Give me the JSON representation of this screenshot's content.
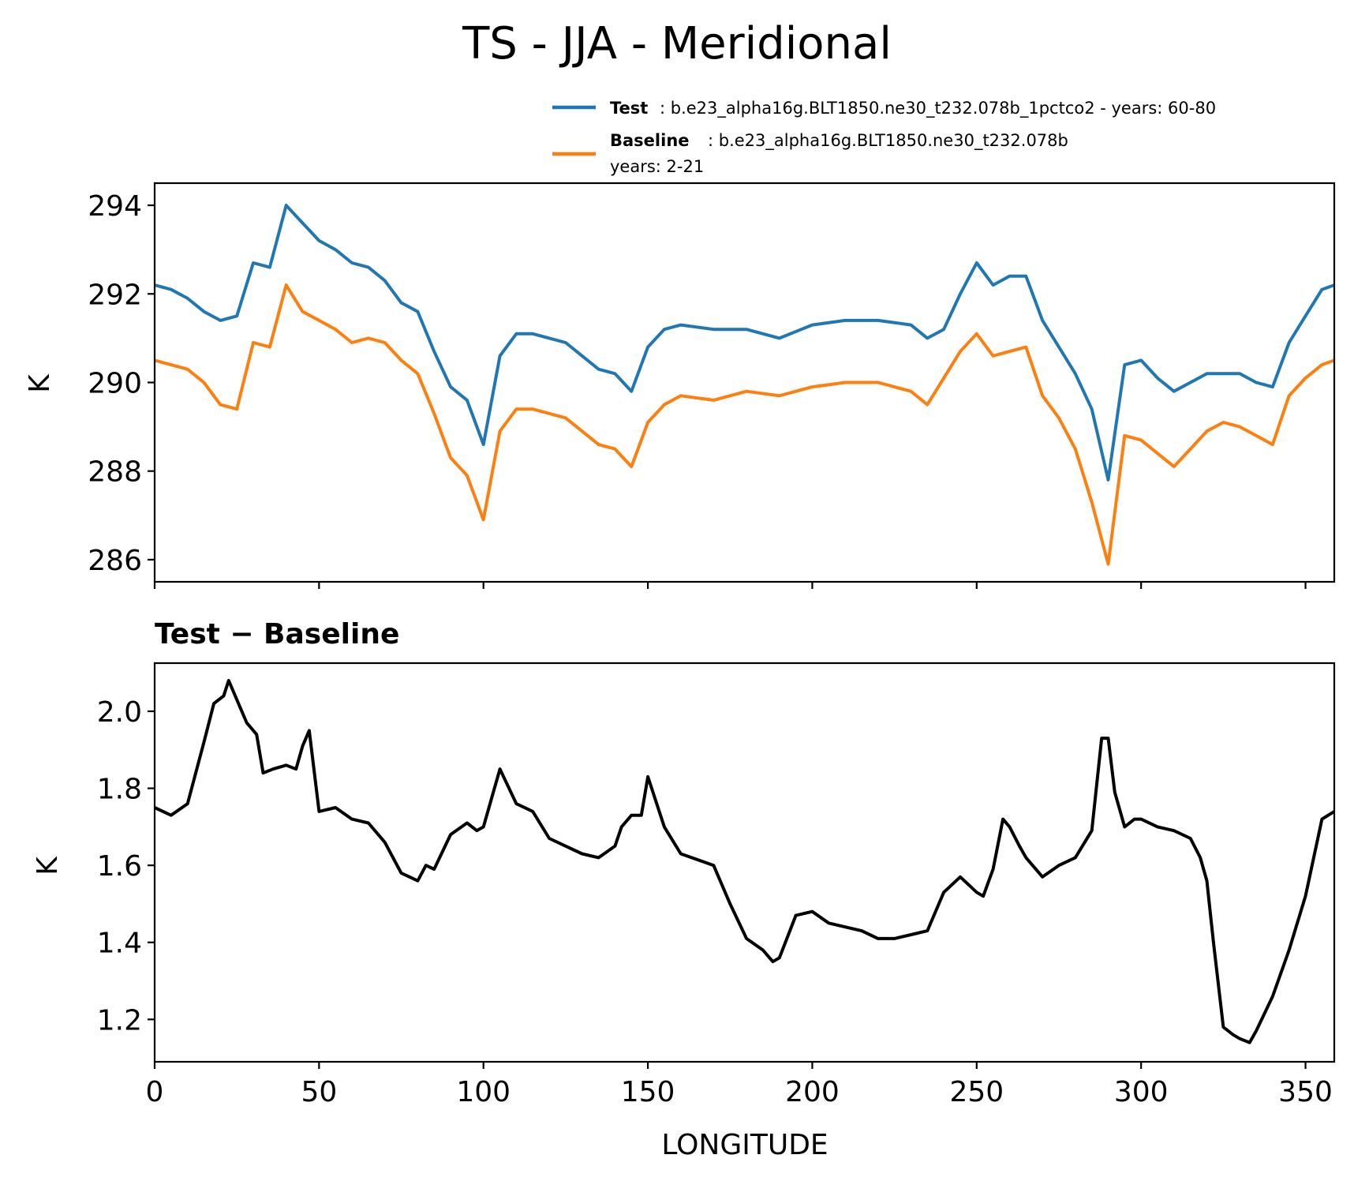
{
  "chart_data": {
    "type": "line",
    "title": "TS - JJA - Meridional",
    "xlabel": "LONGITUDE",
    "colors": {
      "test": "#1f77b4",
      "baseline": "#ff7f0e",
      "diff": "#000000"
    },
    "legend": {
      "placement": "upper-right",
      "entries": [
        {
          "name": "Test",
          "desc": ": b.e23_alpha16g.BLT1850.ne30_t232.078b_1pctco2 - years: 60-80",
          "desc2": ""
        },
        {
          "name": "Baseline",
          "desc": ": b.e23_alpha16g.BLT1850.ne30_t232.078b",
          "desc2": "years: 2-21"
        }
      ]
    },
    "top": {
      "ylabel": "K",
      "xlim": [
        0,
        358.75
      ],
      "ylim": [
        285.5,
        294.5
      ],
      "yticks": [
        "286",
        "288",
        "290",
        "292",
        "294"
      ],
      "ytick_values": [
        286,
        288,
        290,
        292,
        294
      ],
      "xtick_values": [
        0,
        50,
        100,
        150,
        200,
        250,
        300,
        350
      ],
      "x": [
        0,
        5,
        10,
        15,
        20,
        25,
        30,
        35,
        40,
        45,
        50,
        55,
        60,
        65,
        70,
        75,
        80,
        85,
        90,
        95,
        100,
        105,
        110,
        115,
        120,
        125,
        130,
        135,
        140,
        145,
        150,
        155,
        160,
        170,
        180,
        190,
        200,
        210,
        220,
        230,
        235,
        240,
        245,
        250,
        255,
        260,
        265,
        270,
        275,
        280,
        285,
        290,
        295,
        300,
        305,
        310,
        315,
        320,
        325,
        330,
        335,
        340,
        345,
        350,
        355,
        358.75
      ],
      "series": [
        {
          "name": "Test",
          "values": [
            292.2,
            292.1,
            291.9,
            291.6,
            291.4,
            291.5,
            292.7,
            292.6,
            294.0,
            293.6,
            293.2,
            293.0,
            292.7,
            292.6,
            292.3,
            291.8,
            291.6,
            290.7,
            289.9,
            289.6,
            288.6,
            290.6,
            291.1,
            291.1,
            291.0,
            290.9,
            290.6,
            290.3,
            290.2,
            289.8,
            290.8,
            291.2,
            291.3,
            291.2,
            291.2,
            291.0,
            291.3,
            291.4,
            291.4,
            291.3,
            291.0,
            291.2,
            292.0,
            292.7,
            292.2,
            292.4,
            292.4,
            291.4,
            290.8,
            290.2,
            289.4,
            287.8,
            290.4,
            290.5,
            290.1,
            289.8,
            290.0,
            290.2,
            290.2,
            290.2,
            290.0,
            289.9,
            290.9,
            291.5,
            292.1,
            292.2
          ]
        },
        {
          "name": "Baseline",
          "values": [
            290.5,
            290.4,
            290.3,
            290.0,
            289.5,
            289.4,
            290.9,
            290.8,
            292.2,
            291.6,
            291.4,
            291.2,
            290.9,
            291.0,
            290.9,
            290.5,
            290.2,
            289.3,
            288.3,
            287.9,
            286.9,
            288.9,
            289.4,
            289.4,
            289.3,
            289.2,
            288.9,
            288.6,
            288.5,
            288.1,
            289.1,
            289.5,
            289.7,
            289.6,
            289.8,
            289.7,
            289.9,
            290.0,
            290.0,
            289.8,
            289.5,
            290.1,
            290.7,
            291.1,
            290.6,
            290.7,
            290.8,
            289.7,
            289.2,
            288.5,
            287.3,
            285.9,
            288.8,
            288.7,
            288.4,
            288.1,
            288.5,
            288.9,
            289.1,
            289.0,
            288.8,
            288.6,
            289.7,
            290.1,
            290.4,
            290.5
          ]
        }
      ]
    },
    "bottom": {
      "title": "Test − Baseline",
      "ylabel": "K",
      "xlim": [
        0,
        358.75
      ],
      "ylim": [
        1.09,
        2.125
      ],
      "yticks": [
        "1.2",
        "1.4",
        "1.6",
        "1.8",
        "2.0"
      ],
      "ytick_values": [
        1.2,
        1.4,
        1.6,
        1.8,
        2.0
      ],
      "xticks": [
        "0",
        "50",
        "100",
        "150",
        "200",
        "250",
        "300",
        "350"
      ],
      "xtick_values": [
        0,
        50,
        100,
        150,
        200,
        250,
        300,
        350
      ],
      "x": [
        0,
        5,
        10,
        15,
        18,
        21,
        22.5,
        25,
        28,
        31,
        33,
        36,
        40,
        43,
        45,
        47,
        50,
        55,
        60,
        65,
        70,
        75,
        80,
        82.5,
        85,
        90,
        95,
        98,
        100,
        105,
        110,
        115,
        120,
        125,
        130,
        135,
        140,
        142,
        145,
        148,
        150,
        155,
        160,
        170,
        175,
        180,
        185,
        188,
        190,
        195,
        200,
        205,
        210,
        215,
        220,
        225,
        230,
        235,
        240,
        245,
        250,
        252,
        255,
        258,
        260,
        263,
        265,
        270,
        275,
        280,
        285,
        288,
        290,
        292,
        295,
        298,
        300,
        305,
        310,
        315,
        318,
        320,
        322,
        325,
        328,
        330,
        333,
        335,
        340,
        345,
        350,
        355,
        358.75
      ],
      "series": [
        {
          "name": "Test − Baseline",
          "values": [
            1.75,
            1.73,
            1.76,
            1.92,
            2.02,
            2.04,
            2.08,
            2.03,
            1.97,
            1.94,
            1.84,
            1.85,
            1.86,
            1.85,
            1.91,
            1.95,
            1.74,
            1.75,
            1.72,
            1.71,
            1.66,
            1.58,
            1.56,
            1.6,
            1.59,
            1.68,
            1.71,
            1.69,
            1.7,
            1.85,
            1.76,
            1.74,
            1.67,
            1.65,
            1.63,
            1.62,
            1.65,
            1.7,
            1.73,
            1.73,
            1.83,
            1.7,
            1.63,
            1.6,
            1.5,
            1.41,
            1.38,
            1.35,
            1.36,
            1.47,
            1.48,
            1.45,
            1.44,
            1.43,
            1.41,
            1.41,
            1.42,
            1.43,
            1.53,
            1.57,
            1.53,
            1.52,
            1.59,
            1.72,
            1.7,
            1.65,
            1.62,
            1.57,
            1.6,
            1.62,
            1.69,
            1.93,
            1.93,
            1.79,
            1.7,
            1.72,
            1.72,
            1.7,
            1.69,
            1.67,
            1.62,
            1.56,
            1.4,
            1.18,
            1.16,
            1.15,
            1.14,
            1.17,
            1.26,
            1.38,
            1.52,
            1.72,
            1.74
          ]
        }
      ]
    }
  }
}
